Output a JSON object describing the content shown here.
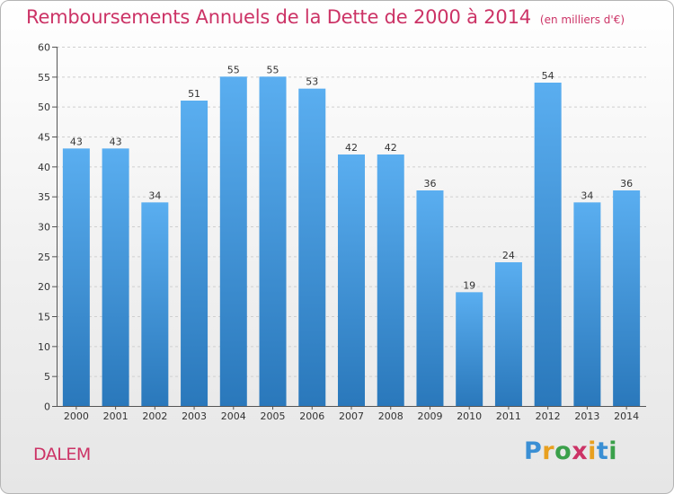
{
  "header": {
    "title": "Remboursements Annuels de la Dette de 2000 à 2014",
    "unit": "(en milliers d'€)"
  },
  "chart_data": {
    "type": "bar",
    "title": "Remboursements Annuels de la Dette de 2000 à 2014",
    "subtitle": "(en milliers d'€)",
    "xlabel": "",
    "ylabel": "",
    "categories": [
      "2000",
      "2001",
      "2002",
      "2003",
      "2004",
      "2005",
      "2006",
      "2007",
      "2008",
      "2009",
      "2010",
      "2011",
      "2012",
      "2013",
      "2014"
    ],
    "values": [
      43,
      43,
      34,
      51,
      55,
      55,
      53,
      42,
      42,
      36,
      19,
      24,
      54,
      34,
      36
    ],
    "ylim": [
      0,
      60
    ],
    "yticks": [
      0,
      5,
      10,
      15,
      20,
      25,
      30,
      35,
      40,
      45,
      50,
      55,
      60
    ],
    "grid": true,
    "bar_color": "#3a8fd4",
    "data_labels": true
  },
  "footer": {
    "commune": "DALEM",
    "brand_letters": [
      "P",
      "r",
      "o",
      "x",
      "i",
      "t",
      "i"
    ],
    "brand_colors": [
      "#3a8fd4",
      "#e8a020",
      "#3aa04a",
      "#cc3366",
      "#e8a020",
      "#3a8fd4",
      "#3aa04a"
    ]
  }
}
